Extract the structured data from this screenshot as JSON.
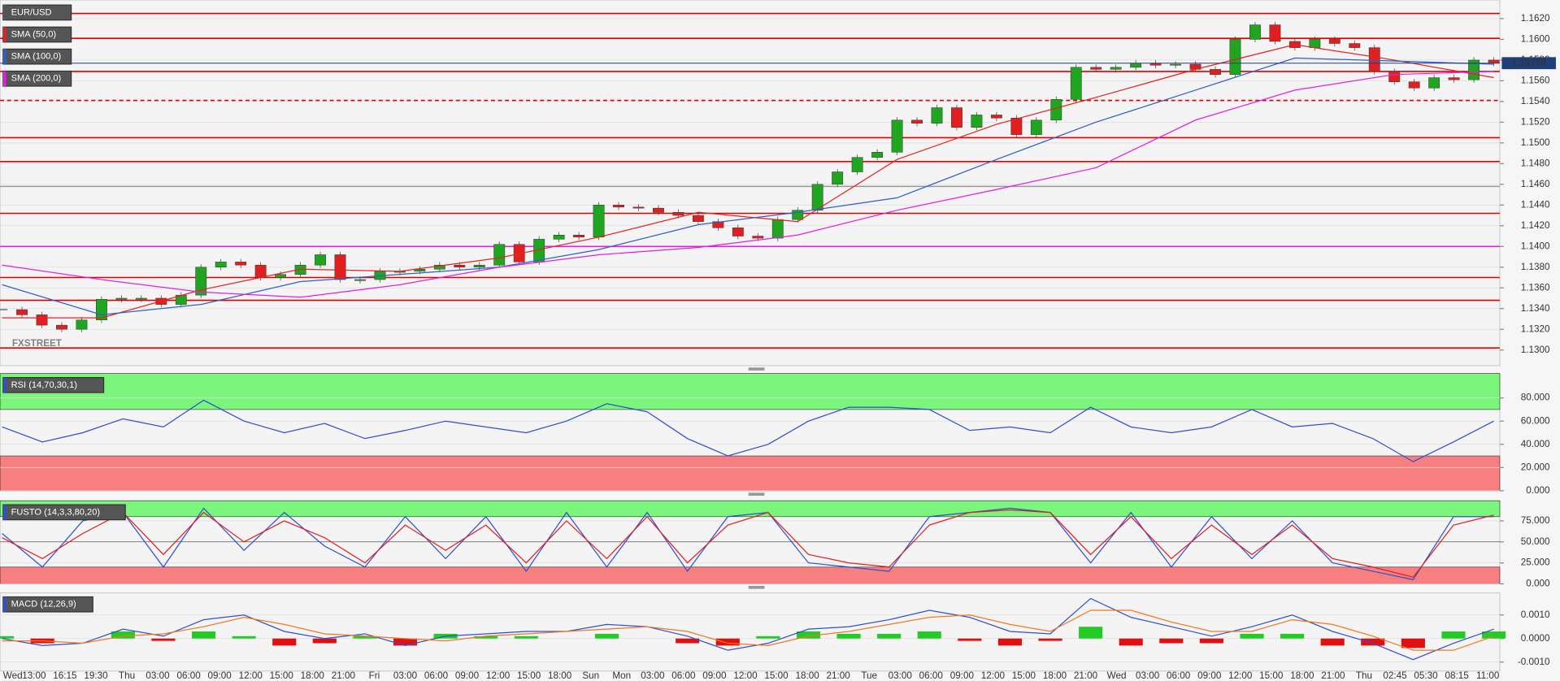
{
  "chart_data": [
    {
      "type": "candlestick",
      "series": [
        {
          "name": "EUR/USD",
          "up_color": "#1fa51f",
          "down_color": "#e02020",
          "color": "#555555",
          "values": [
            1.1339,
            1.1334,
            1.1324,
            1.132,
            1.1329,
            1.1349,
            1.135,
            1.135,
            1.1344,
            1.1353,
            1.138,
            1.1385,
            1.1382,
            1.137,
            1.1373,
            1.1382,
            1.1392,
            1.1368,
            1.1368,
            1.1376,
            1.1376,
            1.1378,
            1.1382,
            1.138,
            1.1382,
            1.1402,
            1.1385,
            1.1407,
            1.1411,
            1.1409,
            1.144,
            1.1438,
            1.1437,
            1.1433,
            1.143,
            1.1424,
            1.1418,
            1.141,
            1.1408,
            1.1426,
            1.1435,
            1.146,
            1.1472,
            1.1486,
            1.1491,
            1.1522,
            1.1519,
            1.1534,
            1.1515,
            1.1527,
            1.1524,
            1.1508,
            1.1522,
            1.1542,
            1.1573,
            1.1571,
            1.1573,
            1.1577,
            1.1575,
            1.1576,
            1.1571,
            1.1566,
            1.16,
            1.1614,
            1.1598,
            1.1592,
            1.16,
            1.1596,
            1.1592,
            1.1569,
            1.1559,
            1.1553,
            1.1563,
            1.1561,
            1.158,
            1.1577
          ]
        },
        {
          "name": "SMA (50,0)",
          "color": "#e52222",
          "values": [
            1.1331,
            1.1331,
            1.1358,
            1.1378,
            1.1376,
            1.1389,
            1.1409,
            1.1433,
            1.1424,
            1.1484,
            1.1518,
            1.1544,
            1.1571,
            1.1595,
            1.158,
            1.1563
          ]
        },
        {
          "name": "SMA (100,0)",
          "color": "#2f5fc8",
          "values": [
            1.1363,
            1.1334,
            1.1344,
            1.1366,
            1.1373,
            1.138,
            1.1397,
            1.1421,
            1.1433,
            1.1447,
            1.1484,
            1.152,
            1.1551,
            1.1582,
            1.1579,
            1.1576
          ]
        },
        {
          "name": "SMA (200,0)",
          "color": "#e020e0",
          "values": [
            1.1382,
            1.1368,
            1.1356,
            1.1351,
            1.1363,
            1.138,
            1.1392,
            1.1399,
            1.1411,
            1.1435,
            1.1455,
            1.1476,
            1.1522,
            1.1551,
            1.1566,
            1.1569
          ]
        }
      ],
      "levels": [
        {
          "value": 1.1625,
          "color": "#e00000",
          "dashed": false
        },
        {
          "value": 1.1601,
          "color": "#e00000",
          "dashed": false
        },
        {
          "value": 1.1569,
          "color": "#e00000",
          "dashed": false
        },
        {
          "value": 1.1541,
          "color": "#e00000",
          "dashed": true
        },
        {
          "value": 1.1505,
          "color": "#e00000",
          "dashed": false
        },
        {
          "value": 1.1482,
          "color": "#e00000",
          "dashed": false
        },
        {
          "value": 1.1458,
          "color": "#999999",
          "dashed": false
        },
        {
          "value": 1.1432,
          "color": "#e00000",
          "dashed": false
        },
        {
          "value": 1.14,
          "color": "#e020e0",
          "dashed": false
        },
        {
          "value": 1.137,
          "color": "#e00000",
          "dashed": false
        },
        {
          "value": 1.1348,
          "color": "#e00000",
          "dashed": false
        },
        {
          "value": 1.1302,
          "color": "#e00000",
          "dashed": false
        }
      ],
      "last_price": {
        "value": 1.1577,
        "label": "1.15770",
        "color": "#1f3f7a"
      },
      "watermark": "FXSTREET",
      "ylim": [
        1.1285,
        1.1638
      ],
      "yticks": [
        {
          "value": 1.13,
          "label": "1.1300"
        },
        {
          "value": 1.132,
          "label": "1.1320"
        },
        {
          "value": 1.134,
          "label": "1.1340"
        },
        {
          "value": 1.136,
          "label": "1.1360"
        },
        {
          "value": 1.138,
          "label": "1.1380"
        },
        {
          "value": 1.14,
          "label": "1.1400"
        },
        {
          "value": 1.142,
          "label": "1.1420"
        },
        {
          "value": 1.144,
          "label": "1.1440"
        },
        {
          "value": 1.146,
          "label": "1.1460"
        },
        {
          "value": 1.148,
          "label": "1.1480"
        },
        {
          "value": 1.15,
          "label": "1.1500"
        },
        {
          "value": 1.152,
          "label": "1.1520"
        },
        {
          "value": 1.154,
          "label": "1.1540"
        },
        {
          "value": 1.156,
          "label": "1.1560"
        },
        {
          "value": 1.158,
          "label": "1.1580"
        },
        {
          "value": 1.16,
          "label": "1.1600"
        },
        {
          "value": 1.162,
          "label": "1.1620"
        }
      ],
      "grid": true
    },
    {
      "type": "line",
      "title": "RSI (14,70,30,1)",
      "series": [
        {
          "color": "#2f4fd0",
          "values": [
            55,
            42,
            50,
            62,
            55,
            78,
            60,
            50,
            58,
            45,
            52,
            60,
            55,
            50,
            60,
            75,
            68,
            45,
            30,
            40,
            60,
            72,
            72,
            70,
            52,
            55,
            50,
            72,
            55,
            50,
            55,
            70,
            55,
            58,
            45,
            25,
            42,
            60
          ]
        }
      ],
      "upper_band": 70,
      "lower_band": 30,
      "upper_color": "#7cf57c",
      "lower_color": "#f77f7f",
      "ylim": [
        0,
        101
      ],
      "yticks": [
        {
          "value": 0,
          "label": "0.000"
        },
        {
          "value": 20,
          "label": "20.000"
        },
        {
          "value": 40,
          "label": "40.000"
        },
        {
          "value": 60,
          "label": "60.000"
        },
        {
          "value": 80,
          "label": "80.000"
        }
      ],
      "grid": true
    },
    {
      "type": "line",
      "title": "FUSTO (14,3,3,80,20)",
      "series": [
        {
          "color": "#2f4fd0",
          "values": [
            60,
            20,
            75,
            85,
            20,
            90,
            40,
            85,
            45,
            20,
            80,
            30,
            80,
            15,
            85,
            20,
            85,
            15,
            80,
            85,
            25,
            20,
            15,
            80,
            85,
            90,
            85,
            25,
            85,
            20,
            80,
            30,
            75,
            25,
            15,
            5,
            80,
            80
          ]
        },
        {
          "color": "#e02020",
          "values": [
            55,
            30,
            60,
            85,
            35,
            85,
            50,
            75,
            55,
            25,
            70,
            40,
            70,
            25,
            75,
            30,
            80,
            25,
            70,
            85,
            35,
            25,
            20,
            70,
            85,
            88,
            85,
            35,
            80,
            30,
            70,
            35,
            70,
            30,
            20,
            8,
            70,
            82
          ]
        }
      ],
      "upper_band": 80,
      "lower_band": 20,
      "upper_color": "#7cf57c",
      "lower_color": "#f77f7f",
      "ylim": [
        0,
        99
      ],
      "yticks": [
        {
          "value": 0,
          "label": "0.000"
        },
        {
          "value": 25,
          "label": "25.000"
        },
        {
          "value": 50,
          "label": "50.000"
        },
        {
          "value": 75,
          "label": "75.000"
        }
      ],
      "grid": true
    },
    {
      "type": "macd",
      "title": "MACD (12,26,9)",
      "histogram": {
        "up_color": "#22cc22",
        "down_color": "#e01010",
        "values": [
          0.0001,
          -0.0002,
          0,
          0.0003,
          -0.0001,
          0.0003,
          0.0001,
          -0.0003,
          -0.0002,
          0.0001,
          -0.0003,
          0.0002,
          0.0001,
          0.0001,
          0,
          0.0002,
          0,
          -0.0002,
          -0.0003,
          0.0001,
          0.0003,
          0.0002,
          0.0002,
          0.0003,
          -0.0001,
          -0.0003,
          -0.0001,
          0.0005,
          -0.0003,
          -0.0002,
          -0.0002,
          0.0002,
          0.0002,
          -0.0003,
          -0.0003,
          -0.0004,
          0.0003,
          0.0003
        ]
      },
      "series": [
        {
          "color": "#2f4fd0",
          "values": [
            0,
            -0.0003,
            -0.0002,
            0.0004,
            0.0001,
            0.0008,
            0.001,
            0.0003,
            0,
            0.0002,
            -0.0003,
            0.0001,
            0.0002,
            0.0003,
            0.0003,
            0.0006,
            0.0005,
            0.0001,
            -0.0005,
            -0.0002,
            0.0004,
            0.0005,
            0.0008,
            0.0012,
            0.0009,
            0.0003,
            0.0002,
            0.0017,
            0.0009,
            0.0005,
            0.0001,
            0.0005,
            0.001,
            0.0003,
            -0.0002,
            -0.0009,
            -0.0002,
            0.0004
          ]
        },
        {
          "color": "#f07820",
          "values": [
            -0.0001,
            -0.0001,
            -0.0002,
            0.0001,
            0.0002,
            0.0005,
            0.0009,
            0.0006,
            0.0002,
            0.0001,
            0,
            -0.0001,
            0.0001,
            0.0002,
            0.0003,
            0.0004,
            0.0005,
            0.0003,
            -0.0002,
            -0.0003,
            0.0001,
            0.0003,
            0.0006,
            0.0009,
            0.001,
            0.0006,
            0.0003,
            0.0012,
            0.0012,
            0.0007,
            0.0003,
            0.0003,
            0.0008,
            0.0006,
            0.0001,
            -0.0005,
            -0.0005,
            0.0001
          ]
        }
      ],
      "ylim": [
        -0.00138,
        0.00194
      ],
      "yticks": [
        {
          "value": -0.001,
          "label": "-0.0010"
        },
        {
          "value": 0,
          "label": "0.0000"
        },
        {
          "value": 0.001,
          "label": "0.0010"
        }
      ],
      "grid": true,
      "xtick_labels": [
        "Wed",
        "13:00",
        "16:15",
        "19:30",
        "Thu",
        "03:00",
        "06:00",
        "09:00",
        "12:00",
        "15:00",
        "18:00",
        "21:00",
        "Fri",
        "03:00",
        "06:00",
        "09:00",
        "12:00",
        "15:00",
        "18:00",
        "Sun",
        "Mon",
        "03:00",
        "06:00",
        "09:00",
        "12:00",
        "15:00",
        "18:00",
        "21:00",
        "Tue",
        "03:00",
        "06:00",
        "09:00",
        "12:00",
        "15:00",
        "18:00",
        "21:00",
        "Wed",
        "03:00",
        "06:00",
        "09:00",
        "12:00",
        "15:00",
        "18:00",
        "21:00",
        "Thu",
        "02:45",
        "05:30",
        "08:15",
        "11:00"
      ]
    }
  ]
}
